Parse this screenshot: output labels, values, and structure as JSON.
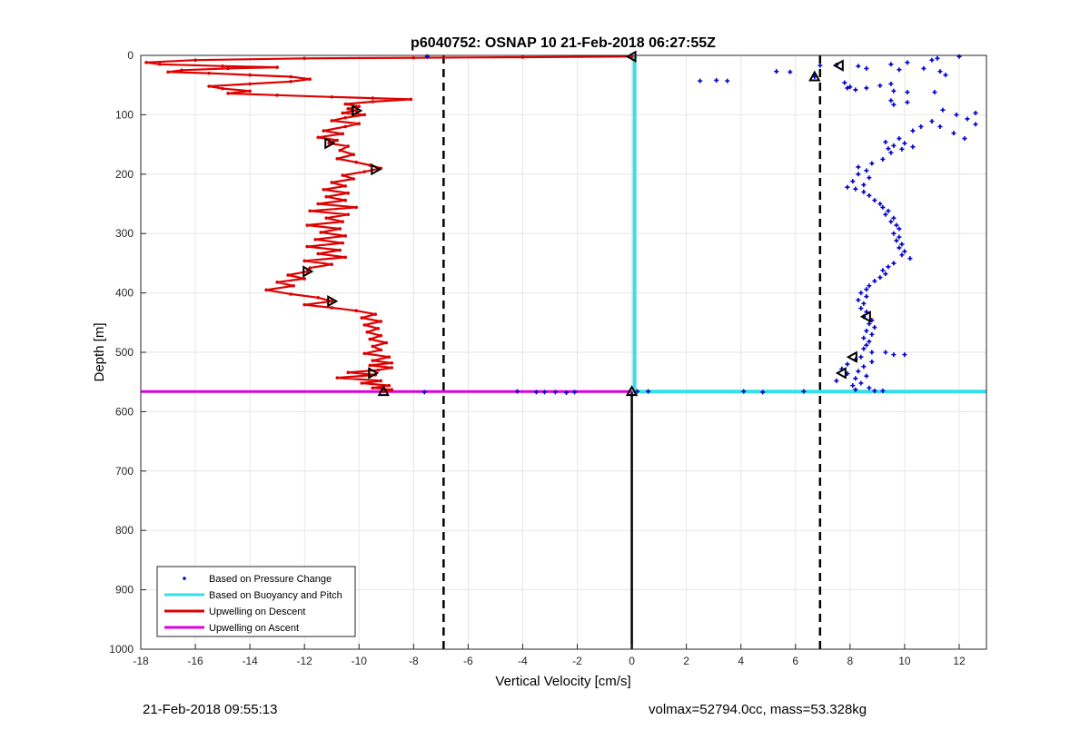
{
  "footer": {
    "timestamp": "21-Feb-2018 09:55:13",
    "ballast": "volmax=52794.0cc, mass=53.328kg"
  },
  "chart_data": {
    "type": "line",
    "title": "p6040752: OSNAP 10 21-Feb-2018 06:27:55Z",
    "xlabel": "Vertical Velocity [cm/s]",
    "ylabel": "Depth [m]",
    "xlim": [
      -18,
      13
    ],
    "ylim": [
      0,
      1000
    ],
    "y_reversed": true,
    "grid": true,
    "x_ticks": [
      -18,
      -16,
      -14,
      -12,
      -10,
      -8,
      -6,
      -4,
      -2,
      0,
      2,
      4,
      6,
      8,
      10,
      12
    ],
    "y_ticks": [
      0,
      100,
      200,
      300,
      400,
      500,
      600,
      700,
      800,
      900,
      1000
    ],
    "legend_position": "bottom-left",
    "legend": [
      {
        "label": "Based on Pressure Change",
        "style": "dot",
        "color": "#0000cc"
      },
      {
        "label": "Based on Buoyancy and Pitch",
        "style": "line",
        "color": "#33e0e6"
      },
      {
        "label": "Upwelling on Descent",
        "style": "line",
        "color": "#dd0000"
      },
      {
        "label": "Upwelling on Ascent",
        "style": "line",
        "color": "#dd00dd"
      }
    ],
    "reference_lines": {
      "dashed_x": [
        -6.9,
        6.9
      ],
      "solid_x": [
        0
      ],
      "max_depth": 566
    },
    "series": {
      "upwelling_descent": {
        "color": "#dd0000",
        "points": [
          [
            0,
            2
          ],
          [
            -4,
            3
          ],
          [
            -8,
            4
          ],
          [
            -12,
            5
          ],
          [
            -16,
            8
          ],
          [
            -17.8,
            12
          ],
          [
            -17.3,
            15
          ],
          [
            -15,
            18
          ],
          [
            -13,
            20
          ],
          [
            -14.8,
            22
          ],
          [
            -16.5,
            25
          ],
          [
            -17,
            28
          ],
          [
            -15.5,
            30
          ],
          [
            -14,
            33
          ],
          [
            -12.5,
            36
          ],
          [
            -11.8,
            40
          ],
          [
            -12.5,
            44
          ],
          [
            -14,
            48
          ],
          [
            -15.5,
            52
          ],
          [
            -15,
            56
          ],
          [
            -14,
            60
          ],
          [
            -14.8,
            64
          ],
          [
            -13,
            67
          ],
          [
            -11,
            70
          ],
          [
            -9.5,
            72
          ],
          [
            -8.1,
            74
          ],
          [
            -9.5,
            78
          ],
          [
            -10.5,
            82
          ],
          [
            -10,
            86
          ],
          [
            -10.4,
            90
          ],
          [
            -10.1,
            93
          ],
          [
            -10.6,
            97
          ],
          [
            -9.8,
            100
          ],
          [
            -10.5,
            105
          ],
          [
            -11,
            110
          ],
          [
            -10,
            115
          ],
          [
            -10.5,
            120
          ],
          [
            -11.3,
            127
          ],
          [
            -10.6,
            132
          ],
          [
            -11.5,
            138
          ],
          [
            -10.8,
            143
          ],
          [
            -11.1,
            148
          ],
          [
            -10.4,
            153
          ],
          [
            -10.7,
            160
          ],
          [
            -10.2,
            167
          ],
          [
            -10.8,
            174
          ],
          [
            -10.1,
            180
          ],
          [
            -9.6,
            185
          ],
          [
            -9.2,
            190
          ],
          [
            -9.8,
            196
          ],
          [
            -10.6,
            202
          ],
          [
            -10.2,
            208
          ],
          [
            -11,
            214
          ],
          [
            -10.5,
            220
          ],
          [
            -11.3,
            226
          ],
          [
            -10.4,
            232
          ],
          [
            -11.2,
            238
          ],
          [
            -10.5,
            244
          ],
          [
            -11.5,
            250
          ],
          [
            -10.1,
            256
          ],
          [
            -11.8,
            262
          ],
          [
            -10.4,
            268
          ],
          [
            -11.2,
            274
          ],
          [
            -10.6,
            280
          ],
          [
            -11.9,
            286
          ],
          [
            -10.7,
            292
          ],
          [
            -11.4,
            298
          ],
          [
            -10.5,
            304
          ],
          [
            -11.6,
            310
          ],
          [
            -10.6,
            316
          ],
          [
            -11.9,
            322
          ],
          [
            -10.7,
            328
          ],
          [
            -11.5,
            334
          ],
          [
            -10.5,
            340
          ],
          [
            -12,
            346
          ],
          [
            -11,
            352
          ],
          [
            -11.8,
            358
          ],
          [
            -11.9,
            364
          ],
          [
            -12.6,
            370
          ],
          [
            -12,
            376
          ],
          [
            -13,
            382
          ],
          [
            -12.4,
            388
          ],
          [
            -13.4,
            395
          ],
          [
            -12.5,
            402
          ],
          [
            -11.5,
            408
          ],
          [
            -11,
            414
          ],
          [
            -12,
            420
          ],
          [
            -11,
            425
          ],
          [
            -10.1,
            430
          ],
          [
            -9.4,
            436
          ],
          [
            -9.9,
            442
          ],
          [
            -9.2,
            448
          ],
          [
            -9.8,
            454
          ],
          [
            -9.3,
            460
          ],
          [
            -9.7,
            466
          ],
          [
            -9.2,
            472
          ],
          [
            -9.6,
            478
          ],
          [
            -9,
            484
          ],
          [
            -9.5,
            490
          ],
          [
            -9.2,
            496
          ],
          [
            -9.8,
            502
          ],
          [
            -8.9,
            508
          ],
          [
            -9.5,
            514
          ],
          [
            -8.8,
            518
          ],
          [
            -9.6,
            522
          ],
          [
            -8.8,
            526
          ],
          [
            -9.3,
            530
          ],
          [
            -10.4,
            534
          ],
          [
            -9.4,
            538
          ],
          [
            -10.8,
            543
          ],
          [
            -9.2,
            548
          ],
          [
            -9.9,
            552
          ],
          [
            -8.9,
            556
          ],
          [
            -9.5,
            560
          ],
          [
            -8.8,
            563
          ],
          [
            -9.1,
            566
          ]
        ],
        "markers": [
          [
            0,
            2
          ],
          [
            -10.1,
            93
          ],
          [
            -11.1,
            148
          ],
          [
            -9.4,
            192
          ],
          [
            -11.9,
            364
          ],
          [
            -11,
            414
          ],
          [
            -9.5,
            535
          ],
          [
            -9.1,
            566
          ]
        ]
      },
      "upwelling_ascent": {
        "color": "#dd00dd",
        "points": [
          [
            -18,
            566
          ],
          [
            0,
            566
          ]
        ]
      },
      "buoyancy_pitch": {
        "color": "#33e0e6",
        "points": [
          [
            0.1,
            0
          ],
          [
            0.1,
            566
          ],
          [
            13,
            566
          ]
        ]
      },
      "pressure_change": {
        "color": "#0000cc",
        "points": [
          [
            12,
            2
          ],
          [
            11.2,
            5
          ],
          [
            11,
            8
          ],
          [
            10.1,
            12
          ],
          [
            9.5,
            15
          ],
          [
            8.3,
            18
          ],
          [
            7.5,
            16
          ],
          [
            6.9,
            17
          ],
          [
            8.6,
            22
          ],
          [
            9.8,
            24
          ],
          [
            5.3,
            27
          ],
          [
            5.8,
            28
          ],
          [
            10.7,
            22
          ],
          [
            11.3,
            27
          ],
          [
            11.5,
            33
          ],
          [
            6.7,
            36
          ],
          [
            2.5,
            43
          ],
          [
            3.1,
            42
          ],
          [
            3.5,
            43
          ],
          [
            7.8,
            46
          ],
          [
            8,
            53
          ],
          [
            8.6,
            55
          ],
          [
            9.1,
            51
          ],
          [
            9.5,
            48
          ],
          [
            7.9,
            55
          ],
          [
            8.2,
            58
          ],
          [
            9.6,
            60
          ],
          [
            10.1,
            62
          ],
          [
            11.1,
            62
          ],
          [
            9.5,
            76
          ],
          [
            10.1,
            79
          ],
          [
            9.6,
            83
          ],
          [
            11.4,
            92
          ],
          [
            12.6,
            97
          ],
          [
            11.9,
            100
          ],
          [
            12.3,
            107
          ],
          [
            12.6,
            116
          ],
          [
            11,
            111
          ],
          [
            11.3,
            120
          ],
          [
            10.6,
            120
          ],
          [
            11.8,
            131
          ],
          [
            12.2,
            140
          ],
          [
            10.3,
            127
          ],
          [
            9.8,
            140
          ],
          [
            9.3,
            146
          ],
          [
            9.6,
            152
          ],
          [
            9.9,
            158
          ],
          [
            10,
            148
          ],
          [
            10.3,
            154
          ],
          [
            9.4,
            157
          ],
          [
            9.5,
            164
          ],
          [
            9.2,
            175
          ],
          [
            8.8,
            182
          ],
          [
            8.3,
            188
          ],
          [
            8.6,
            194
          ],
          [
            8.3,
            200
          ],
          [
            8.7,
            206
          ],
          [
            8.1,
            212
          ],
          [
            8.5,
            218
          ],
          [
            7.9,
            222
          ],
          [
            8.2,
            225
          ],
          [
            8.5,
            230
          ],
          [
            8.7,
            236
          ],
          [
            8.9,
            244
          ],
          [
            9.1,
            250
          ],
          [
            9.2,
            256
          ],
          [
            9.4,
            262
          ],
          [
            9.3,
            268
          ],
          [
            9.6,
            274
          ],
          [
            9.5,
            280
          ],
          [
            9.7,
            286
          ],
          [
            9.8,
            292
          ],
          [
            9.6,
            300
          ],
          [
            9.8,
            306
          ],
          [
            9.7,
            312
          ],
          [
            9.9,
            318
          ],
          [
            9.8,
            324
          ],
          [
            10,
            330
          ],
          [
            9.9,
            336
          ],
          [
            10.2,
            342
          ],
          [
            9.6,
            350
          ],
          [
            9.4,
            356
          ],
          [
            9.2,
            362
          ],
          [
            9.3,
            368
          ],
          [
            9.1,
            374
          ],
          [
            8.9,
            380
          ],
          [
            8.7,
            388
          ],
          [
            8.6,
            394
          ],
          [
            8.4,
            400
          ],
          [
            8.6,
            406
          ],
          [
            8.3,
            412
          ],
          [
            8.5,
            418
          ],
          [
            8.4,
            426
          ],
          [
            8.6,
            432
          ],
          [
            8.5,
            440
          ],
          [
            8.8,
            446
          ],
          [
            8.7,
            452
          ],
          [
            8.9,
            458
          ],
          [
            8.6,
            464
          ],
          [
            8.8,
            470
          ],
          [
            8.5,
            476
          ],
          [
            8.7,
            482
          ],
          [
            8.6,
            488
          ],
          [
            8.5,
            494
          ],
          [
            8.8,
            500
          ],
          [
            9.3,
            500
          ],
          [
            9.6,
            504
          ],
          [
            10,
            504
          ],
          [
            8.4,
            508
          ],
          [
            8.2,
            512
          ],
          [
            8.8,
            516
          ],
          [
            7.9,
            520
          ],
          [
            8.5,
            524
          ],
          [
            7.7,
            528
          ],
          [
            8.3,
            532
          ],
          [
            7.9,
            536
          ],
          [
            8.6,
            540
          ],
          [
            8.2,
            544
          ],
          [
            7.5,
            548
          ],
          [
            8.4,
            552
          ],
          [
            8.1,
            556
          ],
          [
            8.7,
            560
          ],
          [
            8.2,
            563
          ],
          [
            8.9,
            565
          ],
          [
            9.2,
            565
          ],
          [
            4.1,
            566
          ],
          [
            4.8,
            567
          ],
          [
            6.3,
            566
          ],
          [
            0.2,
            566
          ],
          [
            0.6,
            566
          ],
          [
            -2.1,
            567
          ],
          [
            -2.4,
            568
          ],
          [
            -2.8,
            567
          ],
          [
            -3.2,
            567
          ],
          [
            -3.5,
            567
          ],
          [
            -4.2,
            566
          ],
          [
            -7.6,
            567
          ],
          [
            -7.5,
            2
          ]
        ],
        "markers": [
          [
            7.6,
            17
          ],
          [
            6.7,
            36
          ],
          [
            8.6,
            440
          ],
          [
            8.1,
            508
          ],
          [
            7.7,
            535
          ],
          [
            0,
            566
          ]
        ]
      }
    }
  }
}
